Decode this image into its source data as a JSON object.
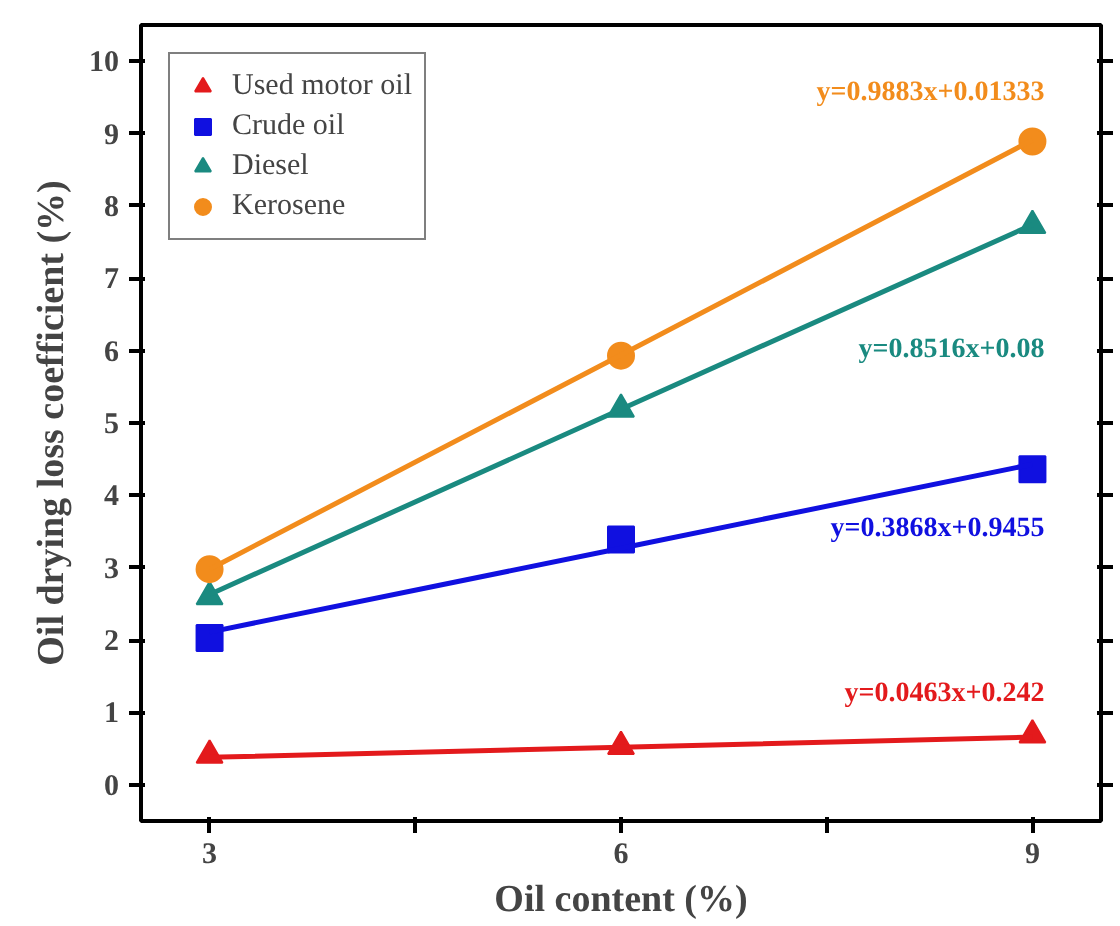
{
  "chart_data": {
    "type": "scatter",
    "xlabel": "Oil content (%)",
    "ylabel": "Oil drying loss coefficient (%)",
    "x": [
      3,
      6,
      9
    ],
    "xlim": [
      2.5,
      9.5
    ],
    "xticks": [
      3,
      {
        "value": 4.5,
        "label": null
      },
      6,
      {
        "value": 7.5,
        "label": null
      },
      9
    ],
    "ylim": [
      -0.5,
      10.5
    ],
    "yticks": [
      0,
      1,
      2,
      3,
      4,
      5,
      6,
      7,
      8,
      9,
      10
    ],
    "grid": false,
    "legend": "top left",
    "series": [
      {
        "name": "Used motor oil",
        "color": "#e31a1c",
        "marker": "triangle",
        "values": [
          0.41,
          0.53,
          0.69
        ]
      },
      {
        "name": "Crude oil",
        "color": "#1010e0",
        "marker": "square",
        "values": [
          2.03,
          3.39,
          4.36
        ]
      },
      {
        "name": "Diesel",
        "color": "#1a8a80",
        "marker": "triangle",
        "values": [
          2.6,
          5.19,
          7.73
        ]
      },
      {
        "name": "Kerosene",
        "color": "#f28c1c",
        "marker": "circle",
        "values": [
          2.98,
          5.93,
          8.89
        ]
      },
      {
        "type": "line",
        "color": "#e31a1c",
        "values": [
          0.38,
          0.52,
          0.66
        ]
      },
      {
        "type": "line",
        "color": "#1010e0",
        "values": [
          2.11,
          3.27,
          4.43
        ]
      },
      {
        "type": "line",
        "color": "#1a8a80",
        "values": [
          2.63,
          5.19,
          7.74
        ]
      },
      {
        "type": "line",
        "color": "#f28c1c",
        "values": [
          2.98,
          5.94,
          8.91
        ]
      }
    ],
    "annotations": [
      "y=0.0463x+0.242",
      "y=0.3868x+0.9455",
      "y=0.8516x+0.08",
      "y=0.9883x+0.01333"
    ]
  }
}
